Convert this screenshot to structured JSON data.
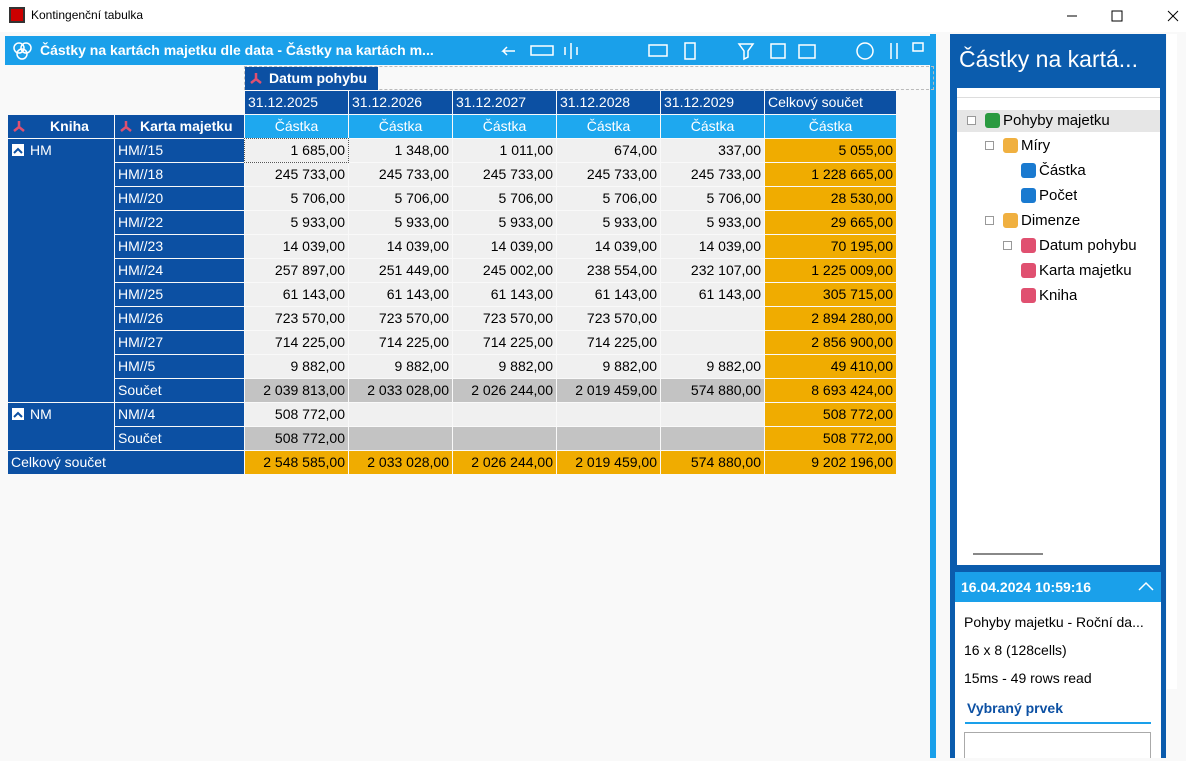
{
  "window": {
    "title": "Kontingenční tabulka"
  },
  "toolbar": {
    "title": "Částky na kartách majetku dle data - Částky na kartách m..."
  },
  "pivot": {
    "column_field": "Datum pohybu",
    "row_fields": [
      "Kniha",
      "Karta majetku"
    ],
    "columns": [
      "31.12.2025",
      "31.12.2026",
      "31.12.2027",
      "31.12.2028",
      "31.12.2029",
      "Celkový součet"
    ],
    "measure": "Částka",
    "groups": [
      {
        "name": "HM",
        "rows": [
          {
            "label": "HM//15",
            "cells": [
              "1 685,00",
              "1 348,00",
              "1 011,00",
              "674,00",
              "337,00",
              "5 055,00"
            ]
          },
          {
            "label": "HM//18",
            "cells": [
              "245 733,00",
              "245 733,00",
              "245 733,00",
              "245 733,00",
              "245 733,00",
              "1 228 665,00"
            ]
          },
          {
            "label": "HM//20",
            "cells": [
              "5 706,00",
              "5 706,00",
              "5 706,00",
              "5 706,00",
              "5 706,00",
              "28 530,00"
            ]
          },
          {
            "label": "HM//22",
            "cells": [
              "5 933,00",
              "5 933,00",
              "5 933,00",
              "5 933,00",
              "5 933,00",
              "29 665,00"
            ]
          },
          {
            "label": "HM//23",
            "cells": [
              "14 039,00",
              "14 039,00",
              "14 039,00",
              "14 039,00",
              "14 039,00",
              "70 195,00"
            ]
          },
          {
            "label": "HM//24",
            "cells": [
              "257 897,00",
              "251 449,00",
              "245 002,00",
              "238 554,00",
              "232 107,00",
              "1 225 009,00"
            ]
          },
          {
            "label": "HM//25",
            "cells": [
              "61 143,00",
              "61 143,00",
              "61 143,00",
              "61 143,00",
              "61 143,00",
              "305 715,00"
            ]
          },
          {
            "label": "HM//26",
            "cells": [
              "723 570,00",
              "723 570,00",
              "723 570,00",
              "723 570,00",
              null,
              "2 894 280,00"
            ]
          },
          {
            "label": "HM//27",
            "cells": [
              "714 225,00",
              "714 225,00",
              "714 225,00",
              "714 225,00",
              null,
              "2 856 900,00"
            ]
          },
          {
            "label": "HM//5",
            "cells": [
              "9 882,00",
              "9 882,00",
              "9 882,00",
              "9 882,00",
              "9 882,00",
              "49 410,00"
            ]
          }
        ],
        "subtotal": {
          "label": "Součet",
          "cells": [
            "2 039 813,00",
            "2 033 028,00",
            "2 026 244,00",
            "2 019 459,00",
            "574 880,00",
            "8 693 424,00"
          ]
        }
      },
      {
        "name": "NM",
        "rows": [
          {
            "label": "NM//4",
            "cells": [
              "508 772,00",
              null,
              null,
              null,
              null,
              "508 772,00"
            ]
          }
        ],
        "subtotal": {
          "label": "Součet",
          "cells": [
            "508 772,00",
            null,
            null,
            null,
            null,
            "508 772,00"
          ]
        }
      }
    ],
    "grand_total": {
      "label": "Celkový součet",
      "cells": [
        "2 548 585,00",
        "2 033 028,00",
        "2 026 244,00",
        "2 019 459,00",
        "574 880,00",
        "9 202 196,00"
      ]
    }
  },
  "panel": {
    "title": "Částky na kartá...",
    "tree": [
      "Pohyby majetku",
      "Míry",
      "Částka",
      "Počet",
      "Dimenze",
      "Datum pohybu",
      "Karta majetku",
      "Kniha"
    ],
    "info": {
      "timestamp": "16.04.2024 10:59:16",
      "lines": [
        "Pohyby majetku - Roční da...",
        "16 x 8 (128cells)",
        "15ms   - 49 rows read"
      ],
      "section": "Vybraný prvek"
    }
  }
}
